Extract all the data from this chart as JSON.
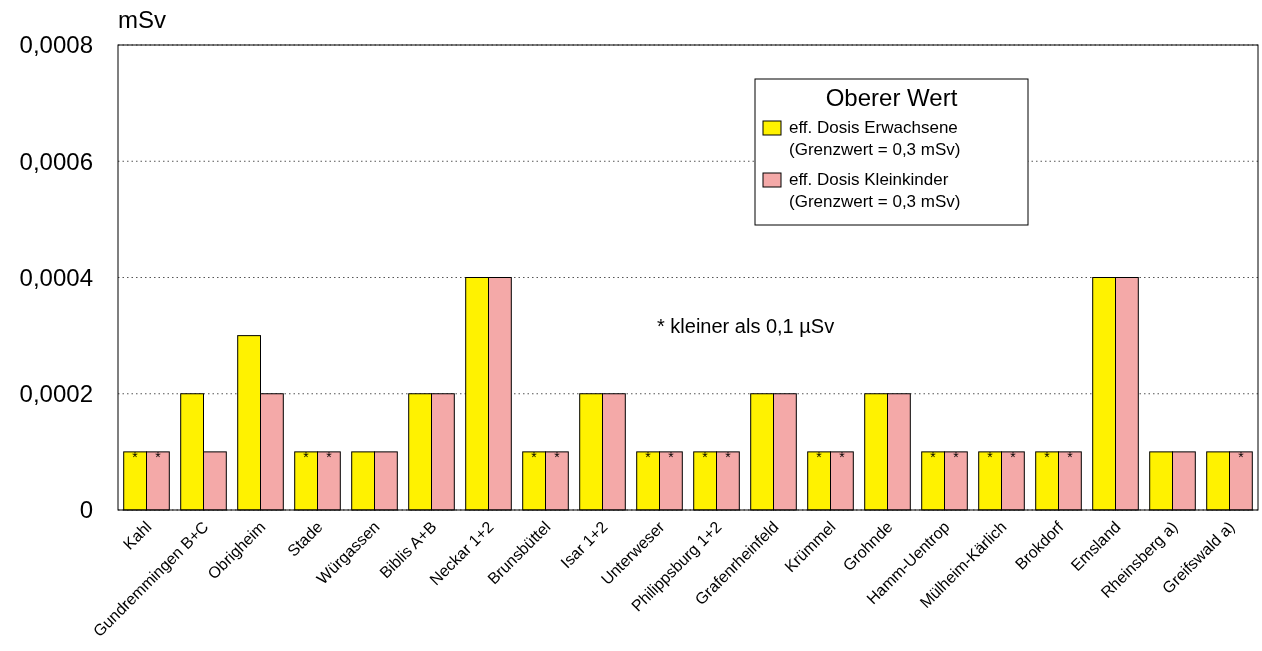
{
  "chart_data": {
    "type": "bar",
    "ylabel": "mSv",
    "legend_title": "Oberer Wert",
    "annotations": [
      "* kleiner als 0,1 µSv"
    ],
    "categories": [
      "Kahl",
      "Gundremmingen B+C",
      "Obrigheim",
      "Stade",
      "Würgassen",
      "Biblis A+B",
      "Neckar 1+2",
      "Brunsbüttel",
      "Isar 1+2",
      "Unterweser",
      "Philippsburg 1+2",
      "Grafenrheinfeld",
      "Krümmel",
      "Grohnde",
      "Hamm-Uentrop",
      "Mülheim-Kärlich",
      "Brokdorf",
      "Emsland",
      "Rheinsberg a)",
      "Greifswald a)"
    ],
    "series": [
      {
        "name": "eff. Dosis Erwachsene\n(Grenzwert = 0,3 mSv)",
        "color": "#fff200",
        "values": [
          0.0001,
          0.0002,
          0.0003,
          0.0001,
          0.0001,
          0.0002,
          0.0004,
          0.0001,
          0.0002,
          0.0001,
          0.0001,
          0.0002,
          0.0001,
          0.0002,
          0.0001,
          0.0001,
          0.0001,
          0.0004,
          0.0001,
          0.0001
        ],
        "value_labels": [
          "*",
          null,
          null,
          "*",
          null,
          null,
          null,
          "*",
          null,
          "*",
          "*",
          null,
          "*",
          null,
          "*",
          "*",
          "*",
          null,
          null,
          null
        ]
      },
      {
        "name": "eff. Dosis Kleinkinder\n(Grenzwert = 0,3 mSv)",
        "color": "#f4a9a8",
        "values": [
          0.0001,
          0.0001,
          0.0002,
          0.0001,
          0.0001,
          0.0002,
          0.0004,
          0.0001,
          0.0002,
          0.0001,
          0.0001,
          0.0002,
          0.0001,
          0.0002,
          0.0001,
          0.0001,
          0.0001,
          0.0004,
          0.0001,
          0.0001
        ],
        "value_labels": [
          "*",
          null,
          null,
          "*",
          null,
          null,
          null,
          "*",
          null,
          "*",
          "*",
          null,
          "*",
          null,
          "*",
          "*",
          "*",
          null,
          null,
          "*"
        ]
      }
    ],
    "ylim": [
      0,
      0.0008
    ],
    "yticks": [
      0,
      {
        "value": 0.0002,
        "label": "0,0002"
      },
      {
        "value": 0.0004,
        "label": "0,0004"
      },
      {
        "value": 0.0006,
        "label": "0,0006"
      },
      {
        "value": 0.0008,
        "label": "0,0008"
      }
    ],
    "grid": "y",
    "legend": "top right"
  }
}
